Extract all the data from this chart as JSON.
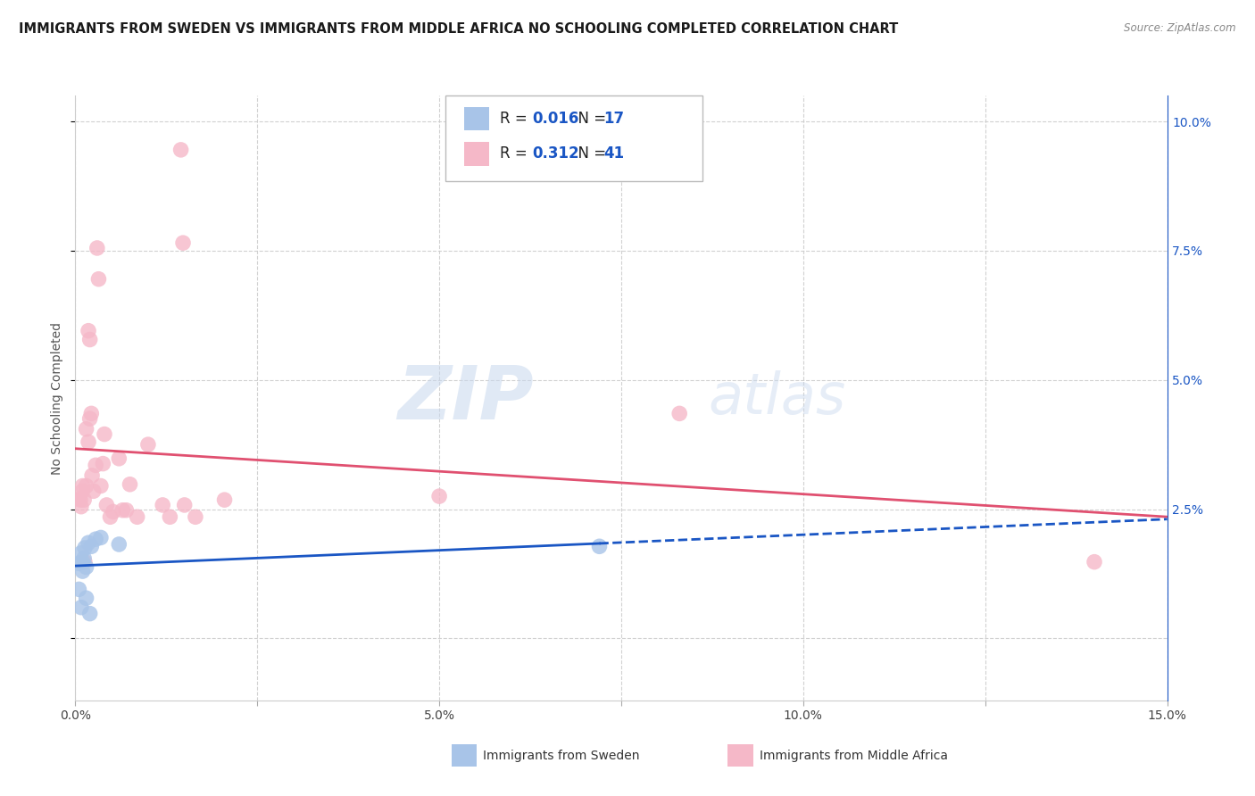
{
  "title": "IMMIGRANTS FROM SWEDEN VS IMMIGRANTS FROM MIDDLE AFRICA NO SCHOOLING COMPLETED CORRELATION CHART",
  "source": "Source: ZipAtlas.com",
  "ylabel": "No Schooling Completed",
  "xlim": [
    0.0,
    0.15
  ],
  "ylim": [
    -0.012,
    0.105
  ],
  "xticks": [
    0.0,
    0.025,
    0.05,
    0.075,
    0.1,
    0.125,
    0.15
  ],
  "xtick_labels": [
    "0.0%",
    "",
    "5.0%",
    "",
    "10.0%",
    "",
    "15.0%"
  ],
  "yticks": [
    0.0,
    0.025,
    0.05,
    0.075,
    0.1
  ],
  "ytick_labels_right": [
    "",
    "2.5%",
    "5.0%",
    "7.5%",
    "10.0%"
  ],
  "legend_r_sweden": "0.016",
  "legend_n_sweden": "17",
  "legend_r_africa": "0.312",
  "legend_n_africa": "41",
  "sweden_color": "#a8c4e8",
  "africa_color": "#f5b8c8",
  "sweden_line_color": "#1a56c4",
  "africa_line_color": "#e05070",
  "watermark_zip": "ZIP",
  "watermark_atlas": "atlas",
  "grid_color": "#cccccc",
  "bg_color": "#ffffff",
  "title_fontsize": 10.5,
  "axis_label_fontsize": 10,
  "tick_fontsize": 10,
  "sweden_x": [
    0.0005,
    0.0005,
    0.0008,
    0.0008,
    0.001,
    0.001,
    0.0012,
    0.0013,
    0.0015,
    0.0015,
    0.0018,
    0.002,
    0.0022,
    0.0028,
    0.0035,
    0.006,
    0.072
  ],
  "sweden_y": [
    0.0145,
    0.0095,
    0.006,
    0.0165,
    0.013,
    0.0148,
    0.0155,
    0.0175,
    0.0138,
    0.0078,
    0.0185,
    0.0048,
    0.0178,
    0.0192,
    0.0195,
    0.0182,
    0.0178
  ],
  "africa_x": [
    0.0005,
    0.0007,
    0.0008,
    0.001,
    0.001,
    0.0012,
    0.0013,
    0.0015,
    0.0015,
    0.0018,
    0.0018,
    0.002,
    0.002,
    0.0022,
    0.0023,
    0.0025,
    0.0028,
    0.003,
    0.0032,
    0.0035,
    0.0038,
    0.004,
    0.0043,
    0.0048,
    0.0052,
    0.006,
    0.0065,
    0.007,
    0.0075,
    0.0085,
    0.01,
    0.012,
    0.013,
    0.0145,
    0.0148,
    0.015,
    0.0165,
    0.0205,
    0.05,
    0.083,
    0.14
  ],
  "africa_y": [
    0.027,
    0.0268,
    0.0255,
    0.0285,
    0.0295,
    0.0268,
    0.0148,
    0.0295,
    0.0405,
    0.0595,
    0.038,
    0.0578,
    0.0425,
    0.0435,
    0.0315,
    0.0285,
    0.0335,
    0.0755,
    0.0695,
    0.0295,
    0.0338,
    0.0395,
    0.0258,
    0.0235,
    0.0245,
    0.0348,
    0.0248,
    0.0248,
    0.0298,
    0.0235,
    0.0375,
    0.0258,
    0.0235,
    0.0945,
    0.0765,
    0.0258,
    0.0235,
    0.0268,
    0.0275,
    0.0435,
    0.0148
  ]
}
